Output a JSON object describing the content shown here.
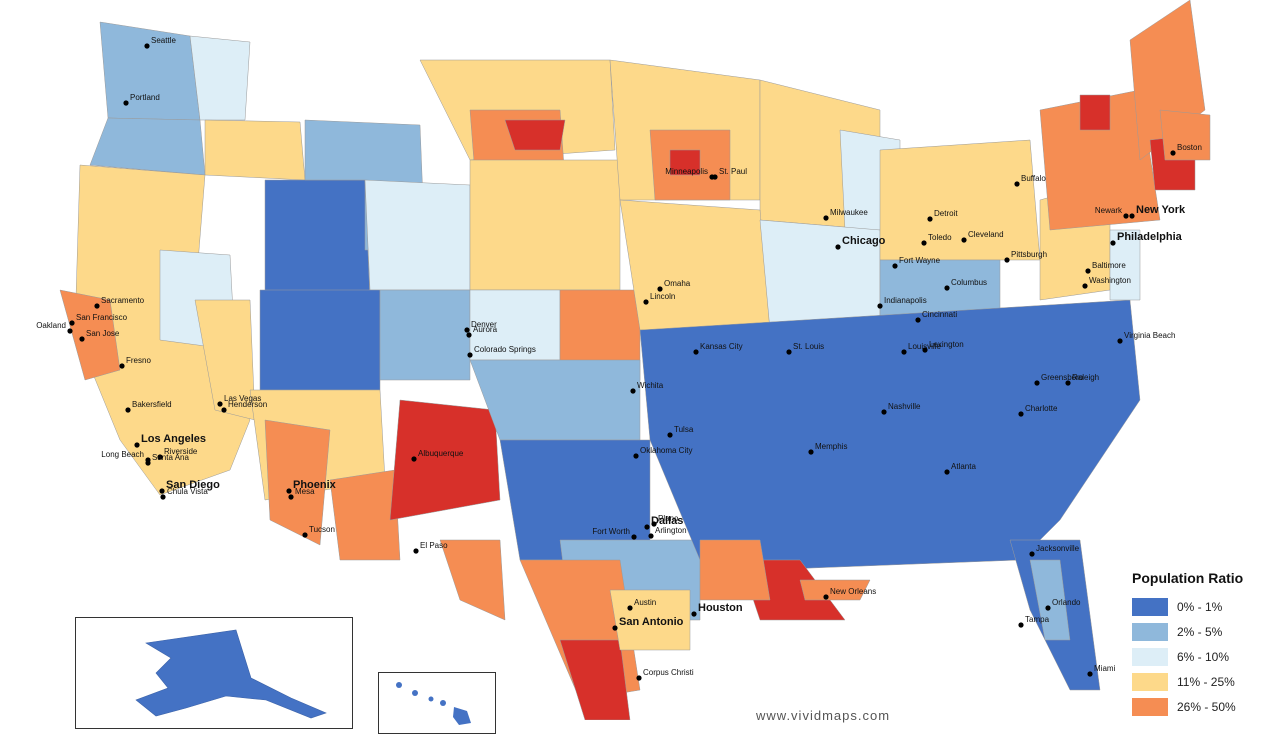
{
  "legend": {
    "title": "Population Ratio",
    "items": [
      {
        "label": "0% - 1%",
        "color": "#4472c4"
      },
      {
        "label": "2% - 5%",
        "color": "#8fb8db"
      },
      {
        "label": "6% - 10%",
        "color": "#ddeef7"
      },
      {
        "label": "11% - 25%",
        "color": "#fdd98a"
      },
      {
        "label": "26% - 50%",
        "color": "#f58d53"
      }
    ]
  },
  "extra_colors": {
    "over_50": "#d7302a",
    "border": "#9a9a9a"
  },
  "cities": [
    {
      "name": "Seattle"
    },
    {
      "name": "Portland"
    },
    {
      "name": "Sacramento"
    },
    {
      "name": "San Francisco"
    },
    {
      "name": "Oakland"
    },
    {
      "name": "San Jose"
    },
    {
      "name": "Fresno"
    },
    {
      "name": "Bakersfield"
    },
    {
      "name": "Las Vegas"
    },
    {
      "name": "Henderson"
    },
    {
      "name": "Los Angeles"
    },
    {
      "name": "Riverside"
    },
    {
      "name": "Long Beach"
    },
    {
      "name": "Santa Ana"
    },
    {
      "name": "San Diego"
    },
    {
      "name": "Chula Vista"
    },
    {
      "name": "Phoenix"
    },
    {
      "name": "Mesa"
    },
    {
      "name": "Tucson"
    },
    {
      "name": "Albuquerque"
    },
    {
      "name": "El Paso"
    },
    {
      "name": "Denver"
    },
    {
      "name": "Aurora"
    },
    {
      "name": "Colorado Springs"
    },
    {
      "name": "Lincoln"
    },
    {
      "name": "Omaha"
    },
    {
      "name": "Wichita"
    },
    {
      "name": "Kansas City"
    },
    {
      "name": "Tulsa"
    },
    {
      "name": "Oklahoma City"
    },
    {
      "name": "Dallas"
    },
    {
      "name": "Plano"
    },
    {
      "name": "Fort Worth"
    },
    {
      "name": "Arlington"
    },
    {
      "name": "Austin"
    },
    {
      "name": "San Antonio"
    },
    {
      "name": "Houston"
    },
    {
      "name": "Corpus Christi"
    },
    {
      "name": "Minneapolis"
    },
    {
      "name": "St. Paul"
    },
    {
      "name": "Milwaukee"
    },
    {
      "name": "Chicago"
    },
    {
      "name": "Detroit"
    },
    {
      "name": "Toledo"
    },
    {
      "name": "Cleveland"
    },
    {
      "name": "Fort Wayne"
    },
    {
      "name": "Indianapolis"
    },
    {
      "name": "Columbus"
    },
    {
      "name": "Cincinnati"
    },
    {
      "name": "St. Louis"
    },
    {
      "name": "Louisville"
    },
    {
      "name": "Lexington"
    },
    {
      "name": "Nashville"
    },
    {
      "name": "Memphis"
    },
    {
      "name": "Atlanta"
    },
    {
      "name": "Charlotte"
    },
    {
      "name": "Greensboro"
    },
    {
      "name": "Raleigh"
    },
    {
      "name": "Virginia Beach"
    },
    {
      "name": "Washington"
    },
    {
      "name": "Baltimore"
    },
    {
      "name": "Philadelphia"
    },
    {
      "name": "Newark"
    },
    {
      "name": "New York"
    },
    {
      "name": "Pittsburgh"
    },
    {
      "name": "Buffalo"
    },
    {
      "name": "Boston"
    },
    {
      "name": "Jacksonville"
    },
    {
      "name": "Orlando"
    },
    {
      "name": "Tampa"
    },
    {
      "name": "Miami"
    },
    {
      "name": "New Orleans"
    }
  ],
  "watermark": "www.vividmaps.com"
}
